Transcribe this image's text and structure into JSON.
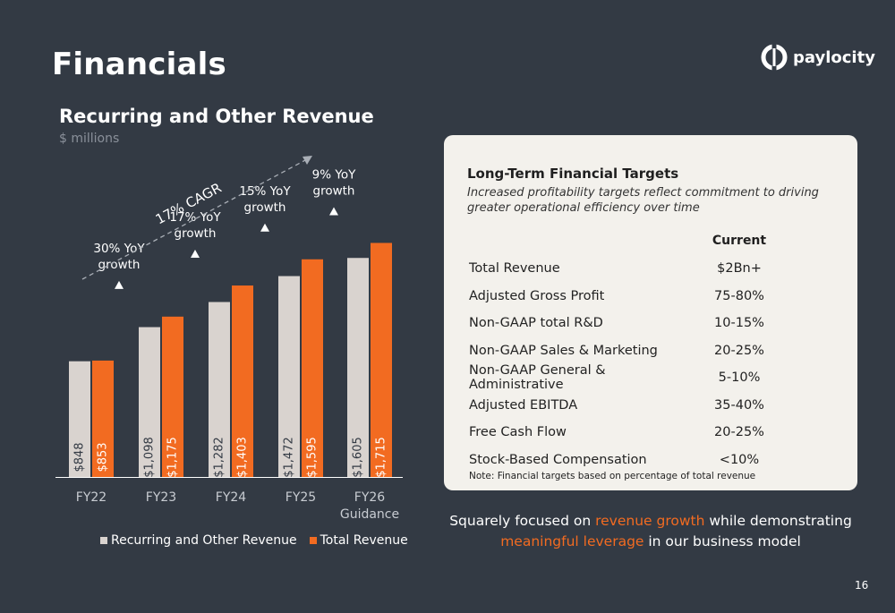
{
  "page": {
    "title": "Financials",
    "logo_text": "paylocity",
    "page_number": "16"
  },
  "colors": {
    "background": "#333a44",
    "recurring": "#d9d3cf",
    "total": "#f26b21",
    "panel": "#f3f1ec"
  },
  "chart_data": {
    "type": "bar",
    "title": "Recurring and Other Revenue",
    "subtitle": "$ millions",
    "categories": [
      [
        "FY22"
      ],
      [
        "FY23"
      ],
      [
        "FY24"
      ],
      [
        "FY25"
      ],
      [
        "FY26",
        "Guidance"
      ]
    ],
    "series": [
      {
        "name": "Recurring and Other Revenue",
        "values": [
          848,
          1098,
          1282,
          1472,
          1605
        ],
        "labels": [
          "$848",
          "$1,098",
          "$1,282",
          "$1,472",
          "$1,605"
        ],
        "color": "#d9d3cf"
      },
      {
        "name": "Total Revenue",
        "values": [
          853,
          1175,
          1403,
          1595,
          1715
        ],
        "labels": [
          "$853",
          "$1,175",
          "$1,403",
          "$1,595",
          "$1,715"
        ],
        "color": "#f26b21"
      }
    ],
    "annotations": [
      {
        "text": [
          "30% YoY",
          "growth"
        ],
        "category": 0
      },
      {
        "text": [
          "17% YoY",
          "growth"
        ],
        "category": 1
      },
      {
        "text": [
          "15% YoY",
          "growth"
        ],
        "category": 2
      },
      {
        "text": [
          "9% YoY",
          "growth"
        ],
        "category": 3
      }
    ],
    "cagr_label": "17% CAGR",
    "legend_position": "bottom",
    "grid": false
  },
  "targets": {
    "heading": "Long-Term Financial Targets",
    "subheading": "Increased profitability targets reflect commitment to driving greater operational efficiency over time",
    "column_header": "Current",
    "rows": [
      {
        "metric": "Total Revenue",
        "value": "$2Bn+"
      },
      {
        "metric": "Adjusted Gross Profit",
        "value": "75-80%"
      },
      {
        "metric": "Non-GAAP total R&D",
        "value": "10-15%"
      },
      {
        "metric": "Non-GAAP Sales & Marketing",
        "value": "20-25%"
      },
      {
        "metric": "Non-GAAP General & Administrative",
        "value": "5-10%"
      },
      {
        "metric": "Adjusted EBITDA",
        "value": "35-40%"
      },
      {
        "metric": "Free Cash Flow",
        "value": "20-25%"
      },
      {
        "metric": "Stock-Based Compensation",
        "value": "<10%"
      }
    ],
    "note": "Note: Financial targets based on percentage of total revenue"
  },
  "tagline": {
    "part1": "Squarely focused on ",
    "highlight1": "revenue growth",
    "part2": " while demonstrating",
    "highlight2": "meaningful leverage",
    "part3": " in our business model"
  }
}
